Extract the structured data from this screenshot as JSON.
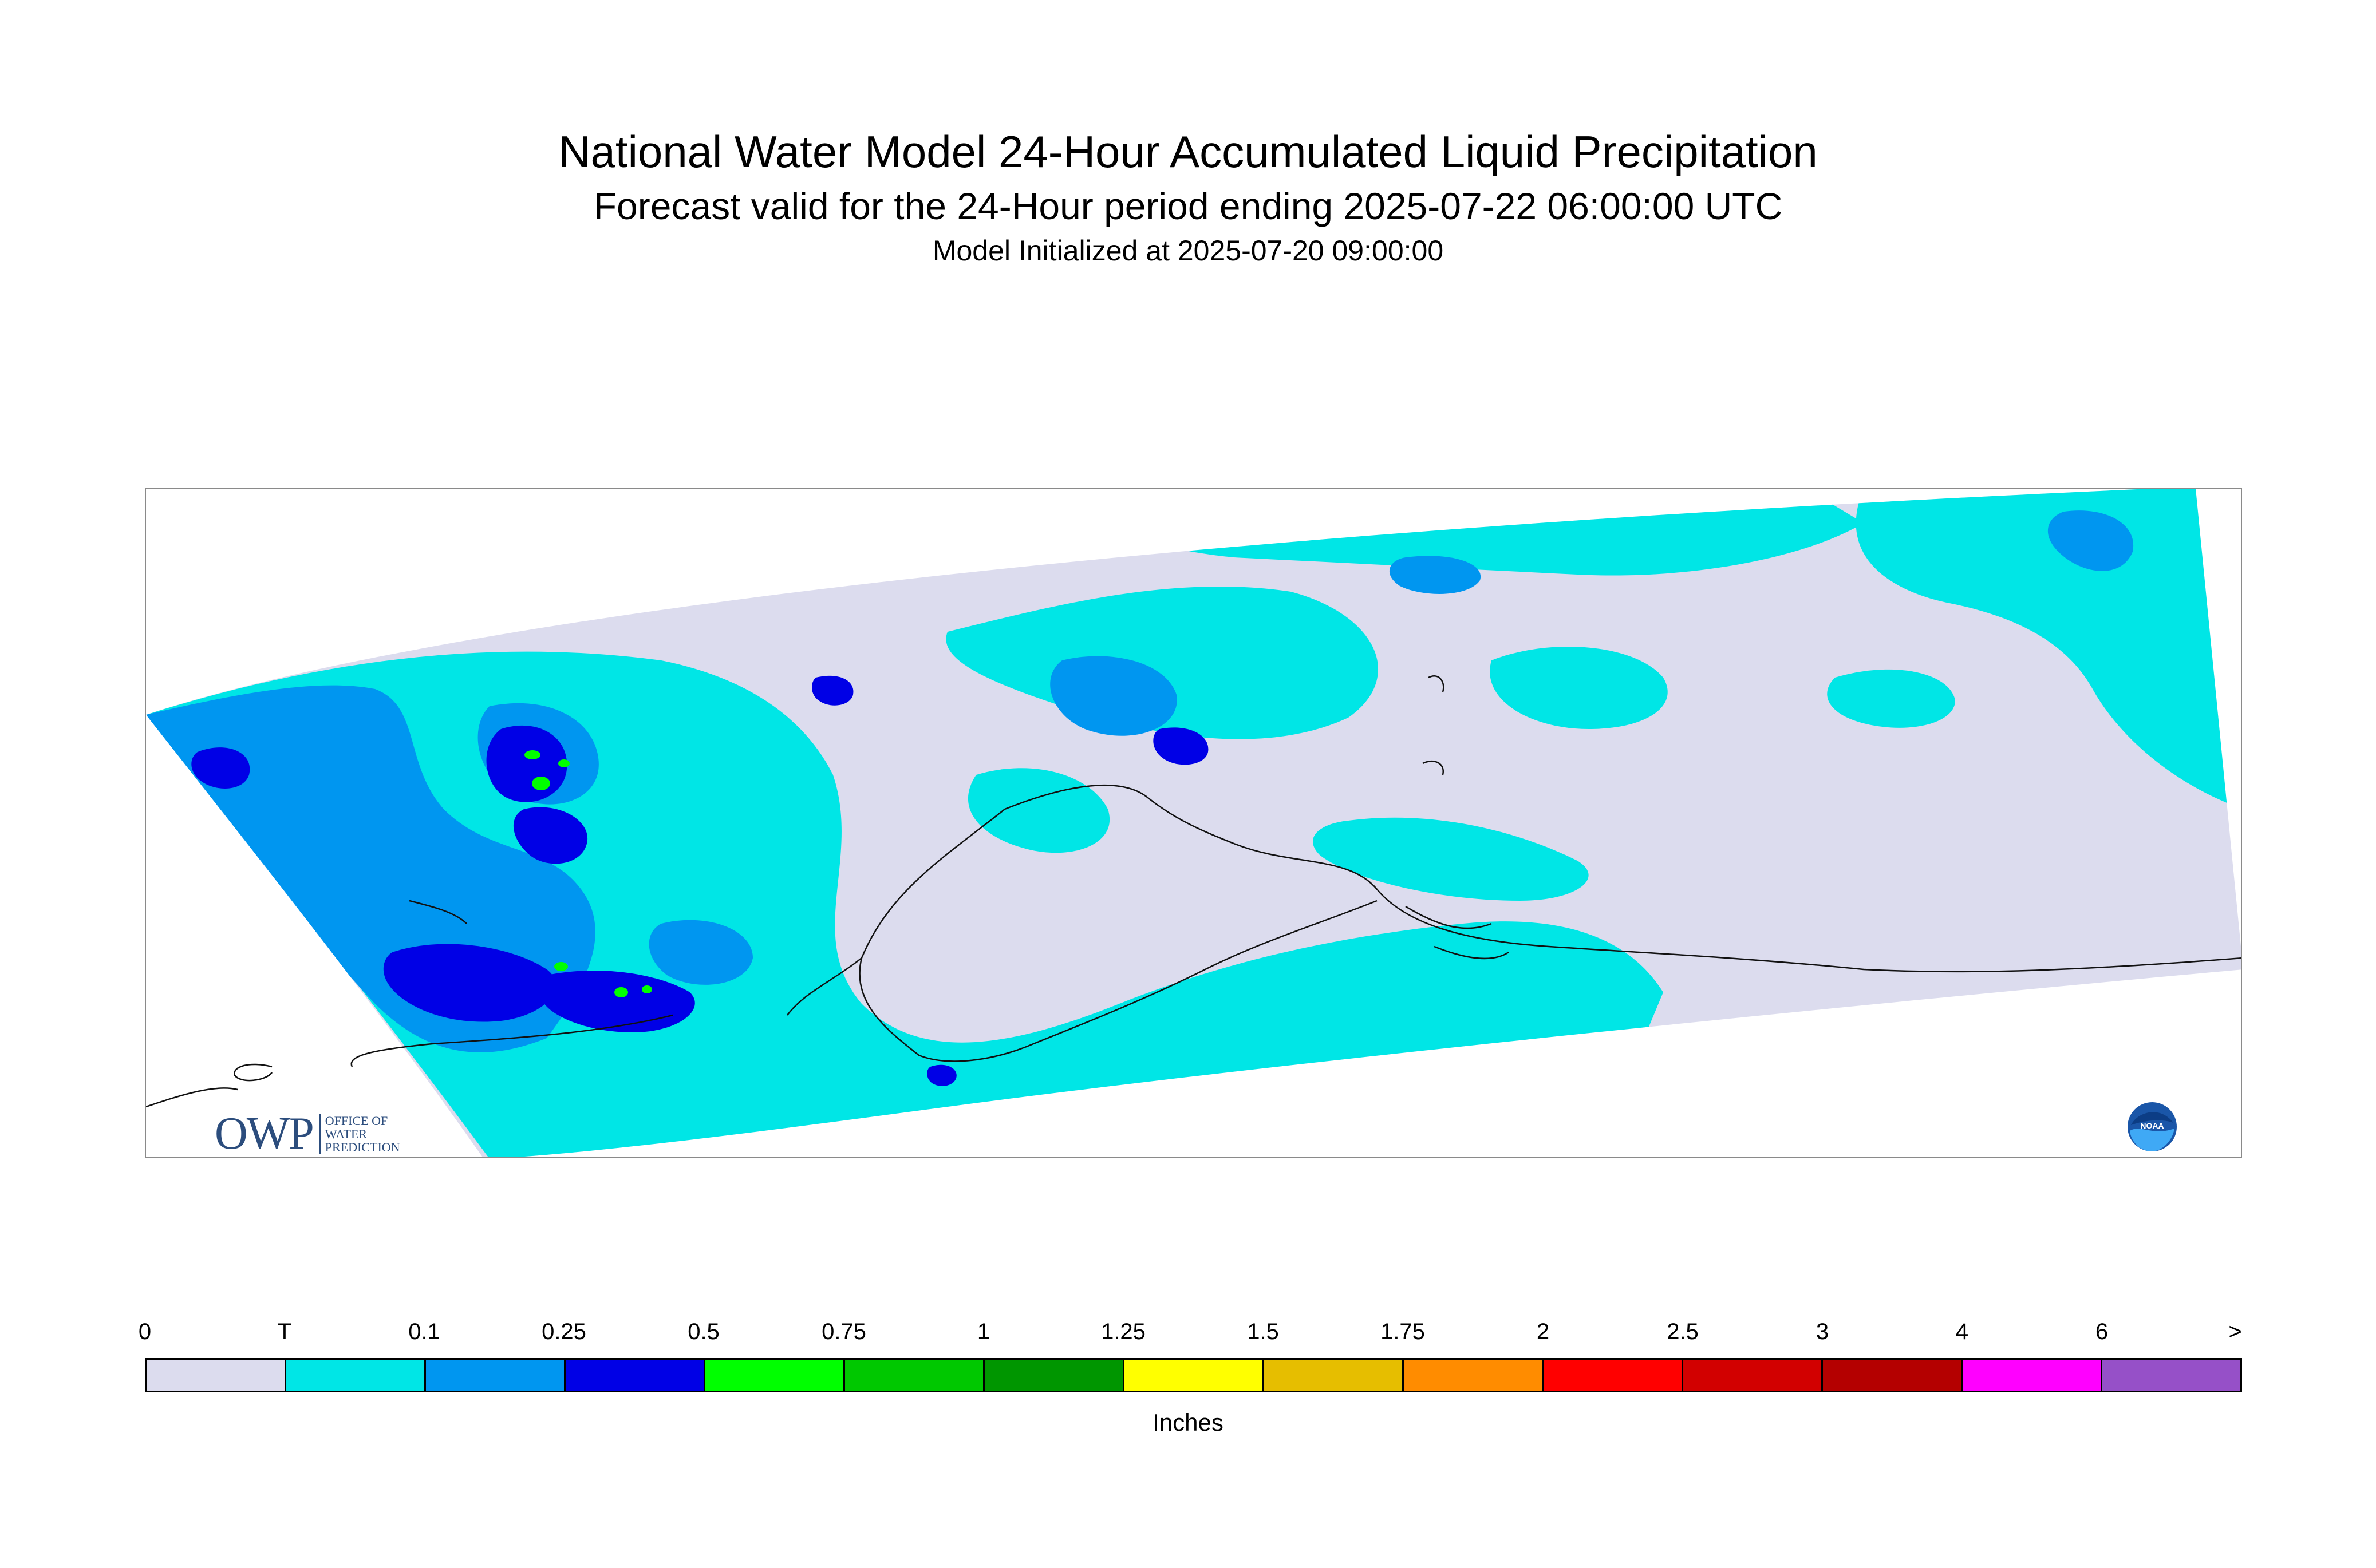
{
  "title": "National Water Model 24-Hour Accumulated Liquid Precipitation",
  "subtitle": "Forecast valid for the 24-Hour period ending 2025-07-22 06:00:00 UTC",
  "init_line": "Model Initialized at 2025-07-20 09:00:00",
  "logos": {
    "owp_mark": "OWP",
    "owp_text": [
      "OFFICE OF",
      "WATER",
      "PREDICTION"
    ],
    "noaa": "NOAA"
  },
  "legend": {
    "labels": [
      "0",
      "T",
      "0.1",
      "0.25",
      "0.5",
      "0.75",
      "1",
      "1.25",
      "1.5",
      "1.75",
      "2",
      "2.5",
      "3",
      "4",
      "6",
      ">"
    ],
    "colors": [
      "#dcdcee",
      "#00e6e6",
      "#0096f0",
      "#0000e6",
      "#00ff00",
      "#00c800",
      "#009600",
      "#ffff00",
      "#e6be00",
      "#ff8c00",
      "#ff0000",
      "#d20000",
      "#b40000",
      "#ff00ff",
      "#9650c8"
    ],
    "units": "Inches"
  }
}
